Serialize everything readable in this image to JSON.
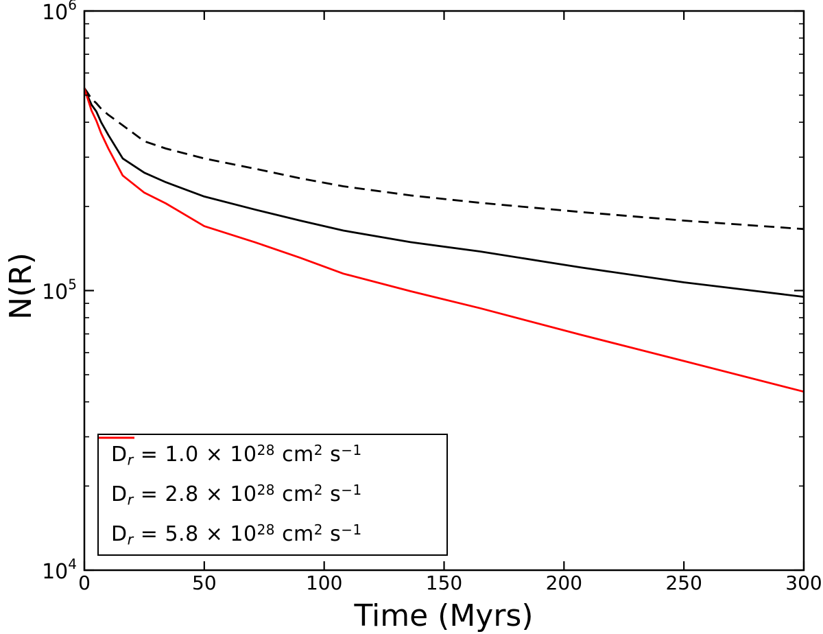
{
  "figure": {
    "background": "#ffffff",
    "axis_color": "#000000"
  },
  "chart_data": {
    "type": "line",
    "title": "",
    "xlabel": "Time (Myrs)",
    "ylabel": "N(R)",
    "x_scale": "linear",
    "y_scale": "log",
    "xlim": [
      0,
      300
    ],
    "ylim": [
      10000,
      1000000
    ],
    "grid": false,
    "legend_position": "lower-left",
    "x_ticks": [
      0,
      50,
      100,
      150,
      200,
      250,
      300
    ],
    "y_major_ticks": [
      {
        "base": "10",
        "exp": "4",
        "value": 10000
      },
      {
        "base": "10",
        "exp": "5",
        "value": 100000
      },
      {
        "base": "10",
        "exp": "6",
        "value": 1000000
      }
    ],
    "y_minor_multipliers": [
      2,
      3,
      4,
      5,
      6,
      7,
      8,
      9
    ],
    "x": [
      0,
      1,
      3,
      5,
      7,
      10,
      16,
      25,
      34,
      50,
      71,
      90,
      108,
      136,
      165,
      207,
      250,
      300
    ],
    "series": [
      {
        "name": "Dr = 1.0 x 10^28 cm^2 s^-1",
        "line_style": "dashed",
        "color": "#000000",
        "values": [
          530000,
          515000,
          485000,
          468000,
          447000,
          425000,
          390000,
          342000,
          322000,
          297000,
          273000,
          252000,
          236000,
          219000,
          206000,
          191000,
          178000,
          166000
        ]
      },
      {
        "name": "Dr = 2.8 x 10^28 cm^2 s^-1",
        "line_style": "solid",
        "color": "#000000",
        "values": [
          530000,
          505000,
          462000,
          437000,
          400000,
          360000,
          297000,
          264000,
          244000,
          217000,
          195000,
          178000,
          164000,
          149000,
          138000,
          121000,
          107000,
          95000
        ]
      },
      {
        "name": "Dr = 5.8 x 10^28 cm^2 s^-1",
        "line_style": "solid",
        "color": "#ff0000",
        "values": [
          530000,
          498000,
          440000,
          405000,
          365000,
          322000,
          258000,
          224000,
          205000,
          170000,
          149000,
          131000,
          115000,
          99500,
          86500,
          69500,
          56000,
          43500
        ]
      }
    ]
  },
  "legend": {
    "entries": [
      {
        "line_style": "dashed",
        "color": "#000000",
        "segments": [
          {
            "t": "D"
          },
          {
            "t": "r",
            "c": "sub"
          },
          {
            "t": " = 1.0 "
          },
          {
            "t": "×"
          },
          {
            "t": " 10"
          },
          {
            "t": "28",
            "c": "sup"
          },
          {
            "t": " cm"
          },
          {
            "t": "2",
            "c": "sup"
          },
          {
            "t": " s"
          },
          {
            "t": "−1",
            "c": "sup"
          }
        ]
      },
      {
        "line_style": "solid",
        "color": "#000000",
        "segments": [
          {
            "t": "D"
          },
          {
            "t": "r",
            "c": "sub"
          },
          {
            "t": " = 2.8 "
          },
          {
            "t": "×"
          },
          {
            "t": " 10"
          },
          {
            "t": "28",
            "c": "sup"
          },
          {
            "t": " cm"
          },
          {
            "t": "2",
            "c": "sup"
          },
          {
            "t": " s"
          },
          {
            "t": "−1",
            "c": "sup"
          }
        ]
      },
      {
        "line_style": "solid",
        "color": "#ff0000",
        "segments": [
          {
            "t": "D"
          },
          {
            "t": "r",
            "c": "sub"
          },
          {
            "t": " = 5.8 "
          },
          {
            "t": "×"
          },
          {
            "t": " 10"
          },
          {
            "t": "28",
            "c": "sup"
          },
          {
            "t": " cm"
          },
          {
            "t": "2",
            "c": "sup"
          },
          {
            "t": " s"
          },
          {
            "t": "−1",
            "c": "sup"
          }
        ]
      }
    ]
  }
}
